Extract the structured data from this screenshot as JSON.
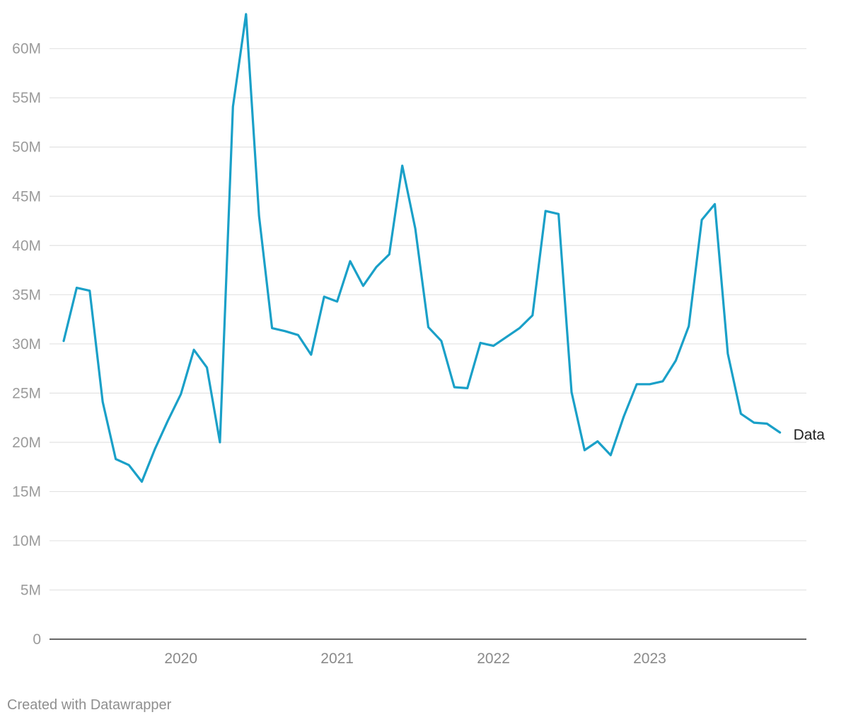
{
  "chart_data": {
    "type": "line",
    "title": "",
    "xlabel": "",
    "ylabel": "",
    "ylim": [
      0,
      63500000
    ],
    "y_ticks": [
      {
        "value": 0,
        "label": "0"
      },
      {
        "value": 5000000,
        "label": "5M"
      },
      {
        "value": 10000000,
        "label": "10M"
      },
      {
        "value": 15000000,
        "label": "15M"
      },
      {
        "value": 20000000,
        "label": "20M"
      },
      {
        "value": 25000000,
        "label": "25M"
      },
      {
        "value": 30000000,
        "label": "30M"
      },
      {
        "value": 35000000,
        "label": "35M"
      },
      {
        "value": 40000000,
        "label": "40M"
      },
      {
        "value": 45000000,
        "label": "45M"
      },
      {
        "value": 50000000,
        "label": "50M"
      },
      {
        "value": 55000000,
        "label": "55M"
      },
      {
        "value": 60000000,
        "label": "60M"
      }
    ],
    "x_ticks": [
      {
        "value": "2020-01",
        "label": "2020"
      },
      {
        "value": "2021-01",
        "label": "2021"
      },
      {
        "value": "2022-01",
        "label": "2022"
      },
      {
        "value": "2023-01",
        "label": "2023"
      }
    ],
    "xlim": [
      "2019-04",
      "2023-12"
    ],
    "grid": "horizontal",
    "legend": "inline-right",
    "color": "#1aa0c8",
    "series": [
      {
        "name": "Data",
        "x": [
          "2019-04",
          "2019-05",
          "2019-06",
          "2019-07",
          "2019-08",
          "2019-09",
          "2019-10",
          "2019-11",
          "2019-12",
          "2020-01",
          "2020-02",
          "2020-03",
          "2020-04",
          "2020-05",
          "2020-06",
          "2020-07",
          "2020-08",
          "2020-09",
          "2020-10",
          "2020-11",
          "2020-12",
          "2021-01",
          "2021-02",
          "2021-03",
          "2021-04",
          "2021-05",
          "2021-06",
          "2021-07",
          "2021-08",
          "2021-09",
          "2021-10",
          "2021-11",
          "2021-12",
          "2022-01",
          "2022-02",
          "2022-03",
          "2022-04",
          "2022-05",
          "2022-06",
          "2022-07",
          "2022-08",
          "2022-09",
          "2022-10",
          "2022-11",
          "2022-12",
          "2023-01",
          "2023-02",
          "2023-03",
          "2023-04",
          "2023-05",
          "2023-06",
          "2023-07",
          "2023-08",
          "2023-09",
          "2023-10",
          "2023-11",
          "2023-12"
        ],
        "values": [
          30300000,
          35700000,
          35400000,
          24100000,
          18300000,
          17700000,
          16000000,
          19300000,
          22200000,
          24900000,
          29400000,
          27600000,
          20000000,
          54100000,
          63500000,
          43000000,
          31600000,
          31300000,
          30900000,
          28900000,
          34800000,
          34300000,
          38400000,
          35900000,
          37800000,
          39100000,
          48100000,
          41700000,
          31700000,
          30300000,
          25600000,
          25500000,
          30100000,
          29800000,
          30700000,
          31600000,
          32900000,
          43500000,
          43200000,
          25100000,
          19200000,
          20100000,
          18700000,
          22600000,
          25900000,
          25900000,
          26200000,
          28300000,
          31800000,
          42600000,
          44200000,
          29000000,
          22900000,
          22000000,
          21900000,
          21000000,
          null
        ]
      }
    ]
  },
  "footer": {
    "credit": "Created with Datawrapper"
  }
}
